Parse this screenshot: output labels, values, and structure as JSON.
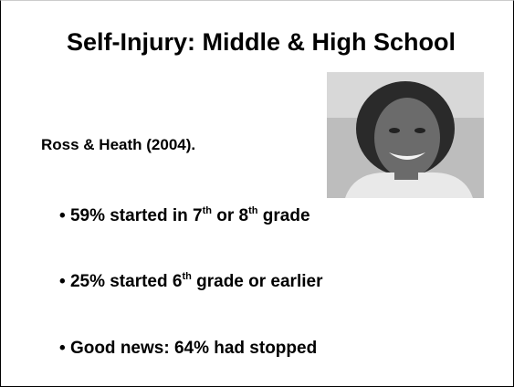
{
  "slide": {
    "title": "Self-Injury: Middle & High School",
    "subtitle": "Ross & Heath (2004).",
    "bullets": [
      {
        "parts": [
          "59% started in 7",
          "th",
          " or 8",
          "th",
          " grade"
        ]
      },
      {
        "parts": [
          "25% started 6",
          "th",
          " grade or earlier"
        ]
      },
      {
        "parts": [
          "Good news: 64% had stopped"
        ]
      }
    ]
  }
}
